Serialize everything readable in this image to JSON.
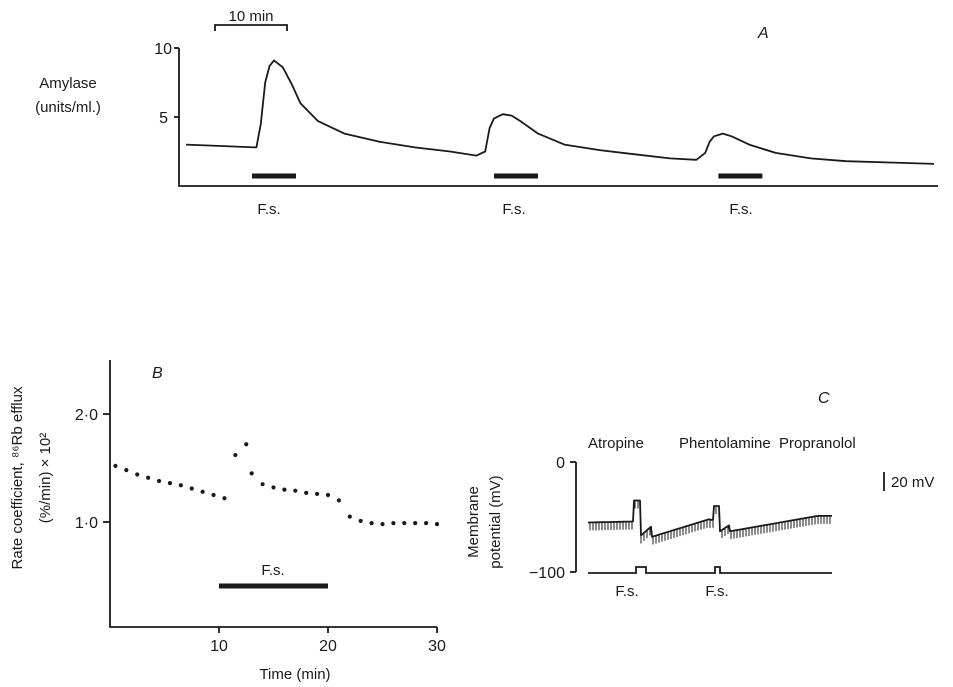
{
  "chart_data": [
    {
      "panel": "A",
      "type": "line",
      "ylabel": [
        "Amylase",
        "(units/ml.)"
      ],
      "ylim": [
        0,
        10
      ],
      "yticks": [
        "5",
        "10"
      ],
      "scale_bar": "10 min",
      "stimulus_label": "F.s.",
      "series": [
        {
          "x": [
            0,
            8,
            16,
            17,
            18,
            19,
            20,
            22,
            24,
            26,
            30,
            36,
            44,
            52,
            60,
            66,
            68,
            69,
            70,
            72,
            74,
            76,
            80,
            86,
            94,
            102,
            110,
            116,
            118,
            119,
            120,
            122,
            124,
            128,
            134,
            142,
            150,
            160,
            170
          ],
          "y": [
            3.0,
            2.9,
            2.8,
            4.5,
            7.5,
            8.7,
            9.1,
            8.6,
            7.4,
            6.0,
            4.7,
            3.8,
            3.2,
            2.8,
            2.5,
            2.2,
            2.5,
            4.2,
            4.9,
            5.2,
            5.1,
            4.7,
            3.8,
            3.0,
            2.6,
            2.3,
            2.0,
            1.9,
            2.4,
            3.2,
            3.6,
            3.8,
            3.6,
            3.0,
            2.4,
            2.0,
            1.8,
            1.7,
            1.6
          ]
        }
      ],
      "stimuli": [
        [
          15,
          25
        ],
        [
          70,
          80
        ],
        [
          121,
          131
        ]
      ]
    },
    {
      "panel": "B",
      "type": "scatter",
      "ylabel": [
        "Rate coefficient, ⁸⁶Rb efflux",
        "(%/min) × 10²"
      ],
      "xlabel": "Time (min)",
      "xlim": [
        0,
        30
      ],
      "ylim": [
        0,
        2.5
      ],
      "xticks": [
        "10",
        "20",
        "30"
      ],
      "yticks": [
        "1·0",
        "2·0"
      ],
      "stimulus_label": "F.s.",
      "stimulus": [
        10,
        20
      ],
      "series": [
        {
          "x": [
            0.5,
            1.5,
            2.5,
            3.5,
            4.5,
            5.5,
            6.5,
            7.5,
            8.5,
            9.5,
            10.5,
            11.5,
            12.5,
            13.0,
            14.0,
            15.0,
            16.0,
            17.0,
            18.0,
            19.0,
            20.0,
            21.0,
            22.0,
            23.0,
            24.0,
            25.0,
            26.0,
            27.0,
            28.0,
            29.0,
            30.0
          ],
          "y": [
            1.52,
            1.48,
            1.44,
            1.41,
            1.38,
            1.36,
            1.34,
            1.31,
            1.28,
            1.25,
            1.22,
            1.62,
            1.72,
            1.45,
            1.35,
            1.32,
            1.3,
            1.29,
            1.27,
            1.26,
            1.25,
            1.2,
            1.05,
            1.01,
            0.99,
            0.98,
            0.99,
            0.99,
            0.99,
            0.99,
            0.98
          ]
        }
      ]
    },
    {
      "panel": "C",
      "type": "line",
      "ylabel": [
        "Membrane",
        "potential (mV)"
      ],
      "ylim": [
        -100,
        0
      ],
      "yticks": [
        "0",
        "−100"
      ],
      "scale_bar": "20 mV",
      "drugs": [
        "Atropine",
        "Phentolamine",
        "Propranolol"
      ],
      "stimulus_label": "F.s.",
      "stimuli": [
        [
          45,
          55
        ],
        [
          125,
          135
        ]
      ]
    }
  ]
}
